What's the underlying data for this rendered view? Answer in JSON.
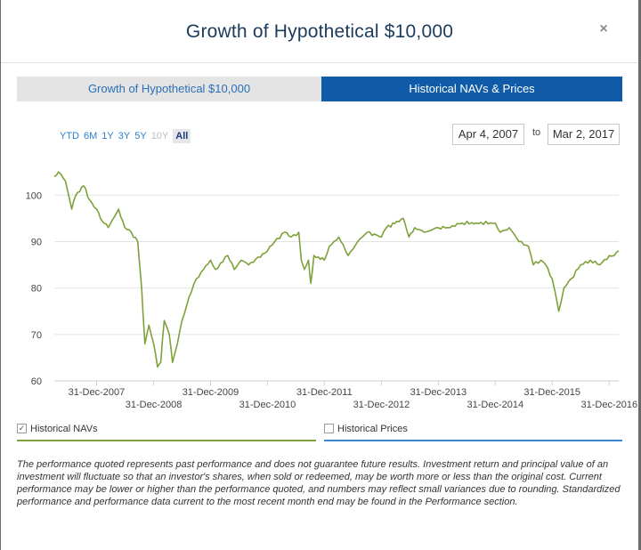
{
  "modal": {
    "title": "Growth of Hypothetical $10,000",
    "close_icon": "×"
  },
  "tabs": [
    {
      "label": "Growth of Hypothetical $10,000",
      "active": false
    },
    {
      "label": "Historical NAVs & Prices",
      "active": true
    }
  ],
  "range_buttons": [
    "YTD",
    "6M",
    "1Y",
    "3Y",
    "5Y",
    "10Y",
    "All"
  ],
  "date_range": {
    "from": "Apr 4, 2007",
    "separator": "to",
    "to": "Mar 2, 2017"
  },
  "legend": {
    "navs": {
      "label": "Historical NAVs",
      "checked": true,
      "check_mark": "✓",
      "color": "#7ea13b"
    },
    "prices": {
      "label": "Historical Prices",
      "checked": false,
      "color": "#3a84d0"
    }
  },
  "disclaimer": "The performance quoted represents past performance and does not guarantee future results. Investment return and principal value of an investment will fluctuate so that an investor's shares, when sold or redeemed, may be worth more or less than the original cost. Current performance may be lower or higher than the performance quoted, and numbers may reflect small variances due to rounding. Standardized performance and performance data current to the most recent month end may be found in the Performance section.",
  "chart_data": {
    "type": "line",
    "series": [
      {
        "color": "#7ea13b",
        "points": [
          [
            "2007-04-04",
            104.0
          ],
          [
            "2007-05-01",
            105.0
          ],
          [
            "2007-06-15",
            103.0
          ],
          [
            "2007-07-25",
            97.0
          ],
          [
            "2007-08-20",
            100.0
          ],
          [
            "2007-10-10",
            102.0
          ],
          [
            "2007-11-15",
            99.0
          ],
          [
            "2007-12-31",
            97.0
          ],
          [
            "2008-01-25",
            95.0
          ],
          [
            "2008-03-15",
            93.0
          ],
          [
            "2008-05-20",
            97.0
          ],
          [
            "2008-06-30",
            93.0
          ],
          [
            "2008-08-10",
            92.0
          ],
          [
            "2008-09-20",
            90.0
          ],
          [
            "2008-10-15",
            80.0
          ],
          [
            "2008-11-05",
            68.0
          ],
          [
            "2008-12-01",
            72.0
          ],
          [
            "2008-12-31",
            68.0
          ],
          [
            "2009-01-25",
            63.0
          ],
          [
            "2009-02-15",
            64.0
          ],
          [
            "2009-03-09",
            73.0
          ],
          [
            "2009-04-10",
            70.0
          ],
          [
            "2009-05-01",
            64.0
          ],
          [
            "2009-06-01",
            68.0
          ],
          [
            "2009-07-01",
            73.0
          ],
          [
            "2009-08-15",
            78.0
          ],
          [
            "2009-10-01",
            82.0
          ],
          [
            "2009-12-31",
            86.0
          ],
          [
            "2010-02-01",
            84.0
          ],
          [
            "2010-04-20",
            87.0
          ],
          [
            "2010-06-01",
            84.0
          ],
          [
            "2010-07-15",
            86.0
          ],
          [
            "2010-09-01",
            85.0
          ],
          [
            "2010-12-31",
            88.0
          ],
          [
            "2011-02-15",
            90.0
          ],
          [
            "2011-04-20",
            92.0
          ],
          [
            "2011-06-01",
            91.0
          ],
          [
            "2011-07-20",
            92.0
          ],
          [
            "2011-08-05",
            86.0
          ],
          [
            "2011-08-25",
            84.0
          ],
          [
            "2011-09-20",
            86.0
          ],
          [
            "2011-10-05",
            81.0
          ],
          [
            "2011-10-25",
            87.0
          ],
          [
            "2011-12-31",
            86.0
          ],
          [
            "2012-02-01",
            89.0
          ],
          [
            "2012-04-01",
            91.0
          ],
          [
            "2012-06-01",
            87.0
          ],
          [
            "2012-08-01",
            90.0
          ],
          [
            "2012-10-01",
            92.0
          ],
          [
            "2012-12-31",
            91.0
          ],
          [
            "2013-02-01",
            93.0
          ],
          [
            "2013-05-20",
            95.0
          ],
          [
            "2013-06-25",
            91.0
          ],
          [
            "2013-08-01",
            93.0
          ],
          [
            "2013-10-01",
            92.0
          ],
          [
            "2013-12-31",
            93.0
          ],
          [
            "2014-03-01",
            93.0
          ],
          [
            "2014-06-01",
            94.0
          ],
          [
            "2014-09-01",
            94.0
          ],
          [
            "2014-12-31",
            94.0
          ],
          [
            "2015-02-01",
            92.0
          ],
          [
            "2015-04-01",
            93.0
          ],
          [
            "2015-06-01",
            90.0
          ],
          [
            "2015-08-01",
            89.0
          ],
          [
            "2015-09-01",
            85.0
          ],
          [
            "2015-10-20",
            86.0
          ],
          [
            "2015-11-20",
            85.0
          ],
          [
            "2015-12-31",
            82.0
          ],
          [
            "2016-01-20",
            79.0
          ],
          [
            "2016-02-11",
            75.0
          ],
          [
            "2016-03-15",
            80.0
          ],
          [
            "2016-05-01",
            82.0
          ],
          [
            "2016-07-01",
            85.0
          ],
          [
            "2016-09-01",
            86.0
          ],
          [
            "2016-11-01",
            85.0
          ],
          [
            "2016-12-31",
            87.0
          ],
          [
            "2017-02-01",
            87.0
          ],
          [
            "2017-03-02",
            88.0
          ]
        ]
      }
    ],
    "xlim": [
      "2007-04-04",
      "2017-03-02"
    ],
    "ylim": [
      60,
      106
    ],
    "y_ticks": [
      60,
      70,
      80,
      90,
      100
    ],
    "x_ticks_upper": [
      "31-Dec-2007",
      "31-Dec-2009",
      "31-Dec-2011",
      "31-Dec-2013",
      "31-Dec-2015"
    ],
    "x_ticks_lower": [
      "31-Dec-2008",
      "31-Dec-2010",
      "31-Dec-2012",
      "31-Dec-2014",
      "31-Dec-2016"
    ],
    "grid": true
  }
}
